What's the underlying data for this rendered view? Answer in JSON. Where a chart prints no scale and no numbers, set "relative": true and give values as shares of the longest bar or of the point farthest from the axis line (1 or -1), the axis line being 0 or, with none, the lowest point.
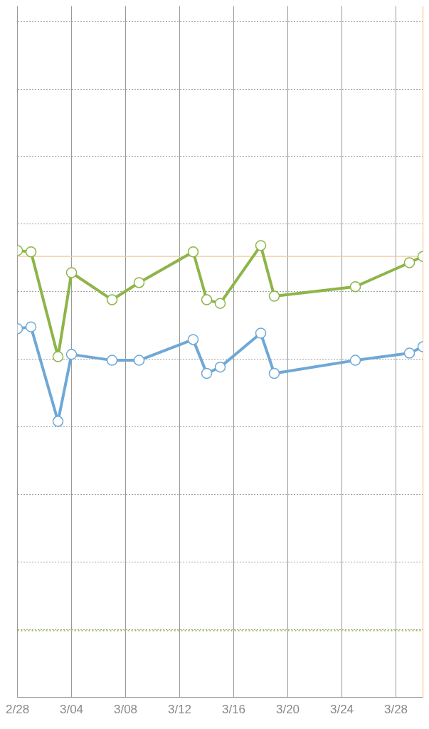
{
  "chart_data": {
    "type": "line",
    "relative": true,
    "x": [
      "--02-28",
      "--03-01",
      "--03-03",
      "--03-04",
      "--03-07",
      "--03-09",
      "--03-13",
      "--03-14",
      "--03-15",
      "--03-18",
      "--03-19",
      "--03-25",
      "--03-29",
      "--03-30"
    ],
    "xlim": [
      "--02-28",
      "--03-30"
    ],
    "xticks": [
      {
        "value": "--02-28",
        "label": "2/28"
      },
      {
        "value": "--03-04",
        "label": "3/04"
      },
      {
        "value": "--03-08",
        "label": "3/08"
      },
      {
        "value": "--03-12",
        "label": "3/12"
      },
      {
        "value": "--03-16",
        "label": "3/16"
      },
      {
        "value": "--03-20",
        "label": "3/20"
      },
      {
        "value": "--03-24",
        "label": "3/24"
      },
      {
        "value": "--03-28",
        "label": "3/28"
      }
    ],
    "series": [
      {
        "color": "#8db548",
        "values": [
          0.989,
          0.986,
          0.754,
          0.94,
          0.88,
          0.918,
          0.986,
          0.88,
          0.872,
          1,
          0.888,
          0.909,
          0.962,
          0.976
        ]
      },
      {
        "color": "#6fa8d6",
        "values": [
          0.816,
          0.82,
          0.611,
          0.759,
          0.746,
          0.746,
          0.792,
          0.717,
          0.731,
          0.806,
          0.717,
          0.746,
          0.762,
          0.776
        ]
      }
    ],
    "ref_lines": [
      {
        "axis": "y",
        "value": 0.976,
        "color": "#f5c89a",
        "line_style": "solid"
      },
      {
        "axis": "y",
        "value": 0.148,
        "color": "#9bc25a",
        "line_style": "dotted"
      },
      {
        "axis": "x",
        "value": "--03-30",
        "color": "#f5c89a",
        "line_style": "solid"
      }
    ],
    "grid": true,
    "legend": false,
    "marker": "circle",
    "line_style": "solid"
  }
}
